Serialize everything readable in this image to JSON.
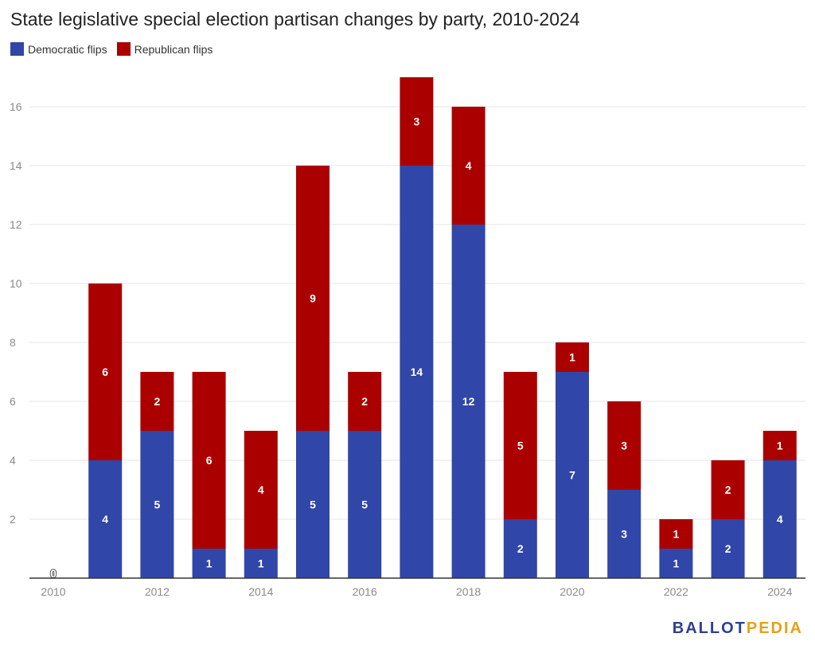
{
  "title": "State legislative special election partisan changes by party, 2010-2024",
  "legend": [
    {
      "label": "Democratic flips",
      "color": "#3046a8"
    },
    {
      "label": "Republican flips",
      "color": "#ab0000"
    }
  ],
  "logo": {
    "part1": "BALLOT",
    "part2": "PEDIA",
    "color1": "#2f3f8f",
    "color2": "#e3a21a"
  },
  "chart_data": {
    "type": "bar",
    "stacked": true,
    "categories": [
      "2010",
      "2011",
      "2012",
      "2013",
      "2014",
      "2015",
      "2016",
      "2017",
      "2018",
      "2019",
      "2020",
      "2021",
      "2022",
      "2023",
      "2024"
    ],
    "x_tick_labels": [
      "2010",
      "2012",
      "2014",
      "2016",
      "2018",
      "2020",
      "2022",
      "2024"
    ],
    "series": [
      {
        "name": "Democratic flips",
        "color": "#3046a8",
        "values": [
          0,
          4,
          5,
          1,
          1,
          5,
          5,
          14,
          12,
          2,
          7,
          3,
          1,
          2,
          4
        ]
      },
      {
        "name": "Republican flips",
        "color": "#ab0000",
        "values": [
          0,
          6,
          2,
          6,
          4,
          9,
          2,
          3,
          4,
          5,
          1,
          3,
          1,
          2,
          1
        ]
      }
    ],
    "ylim": [
      0,
      17
    ],
    "y_ticks": [
      2,
      4,
      6,
      8,
      10,
      12,
      14,
      16
    ],
    "grid": true,
    "legend_position": "top-left",
    "zero_label": "0"
  }
}
